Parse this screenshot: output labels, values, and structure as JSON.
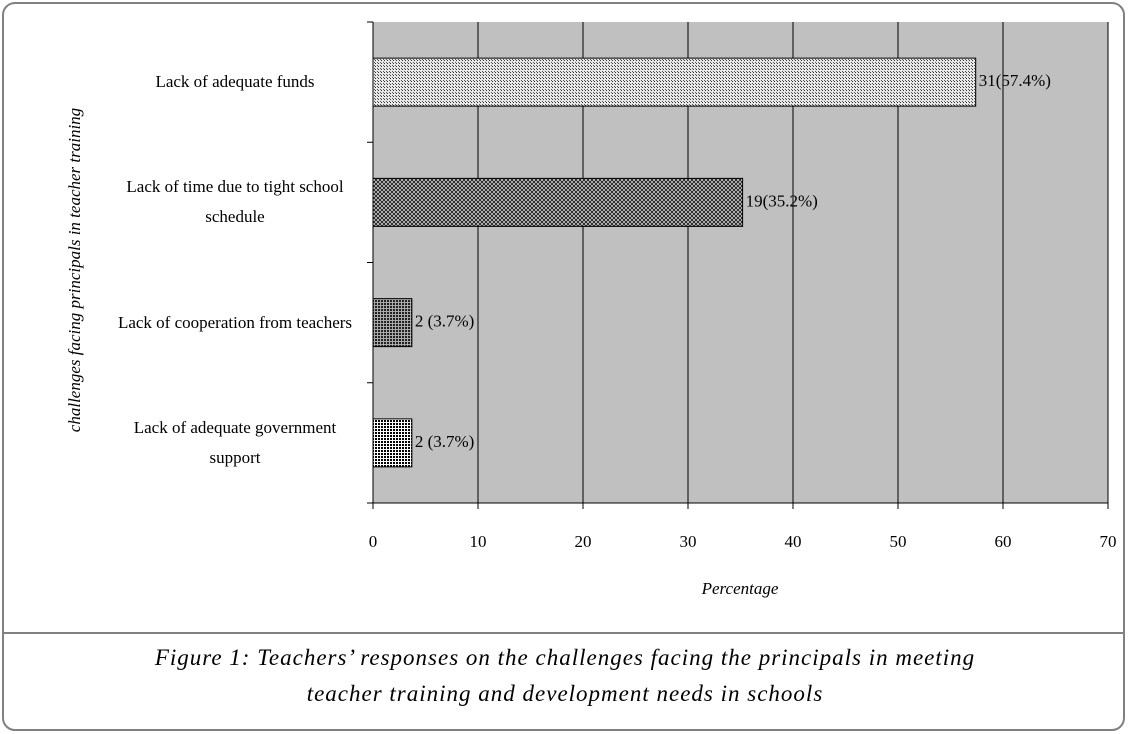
{
  "chart_data": {
    "type": "barh",
    "ylabel": "challenges facing principals in teacher training",
    "xlabel": "Percentage",
    "caption": "Figure 1: Teachers’ responses on the challenges facing the principals in meeting teacher training and development needs in schools",
    "categories": [
      "Lack of adequate funds",
      "Lack of time due to tight school schedule",
      "Lack of cooperation from teachers",
      "Lack of adequate government support"
    ],
    "values": [
      57.4,
      35.2,
      3.7,
      3.7
    ],
    "value_labels": [
      "31(57.4%)",
      "19(35.2%)",
      "2 (3.7%)",
      "2 (3.7%)"
    ],
    "xlim": [
      0,
      70
    ],
    "xticks": [
      0,
      10,
      20,
      30,
      40,
      50,
      60,
      70
    ],
    "grid": true
  }
}
